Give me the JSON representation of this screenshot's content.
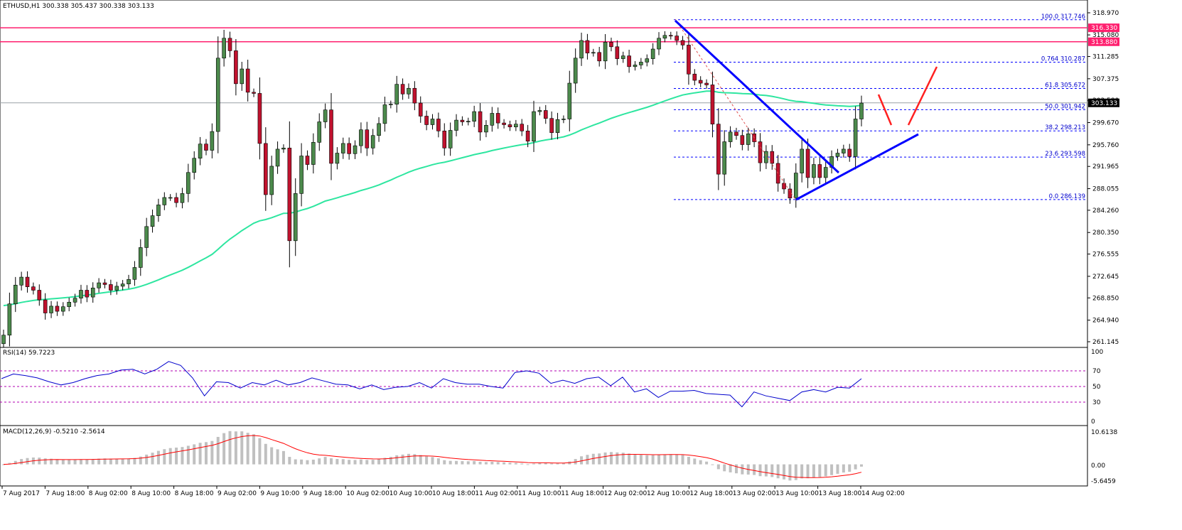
{
  "header": {
    "symbol_info": "ETHUSD,H1  300.338 305.437 300.338 303.133"
  },
  "rsi": {
    "label": "RSI(14) 59.7223",
    "levels": [
      "70",
      "50",
      "30"
    ],
    "level_values": [
      70,
      50,
      30
    ],
    "scale_labels": [
      "100",
      "0"
    ]
  },
  "macd": {
    "label": "MACD(12,26,9) -0.5210 -2.5614",
    "scale_labels": [
      "10.6138",
      "0.00",
      "-5.6459"
    ]
  },
  "colors": {
    "bull_candle": "#4c8a4c",
    "bear_candle": "#c0122e",
    "ma_line": "#2ee6a0",
    "trendline": "#0000ff",
    "resistance": "#ff1f6e",
    "rsi_line": "#0000cc",
    "macd_signal": "#ff0000",
    "macd_hist": "#c0c0c0"
  },
  "chart_data": {
    "type": "candlestick",
    "symbol": "ETHUSD",
    "timeframe": "H1",
    "y_axis_labels": [
      "318.970",
      "315.080",
      "311.285",
      "307.375",
      "303.580",
      "299.670",
      "295.760",
      "291.965",
      "288.055",
      "284.260",
      "280.350",
      "276.555",
      "272.645",
      "268.850",
      "264.940",
      "261.145"
    ],
    "ylim": [
      261.145,
      318.97
    ],
    "current_price": "303.133",
    "resistance_labels": [
      "316.330",
      "313.880"
    ],
    "resistance_levels": [
      316.33,
      313.88
    ],
    "fib_levels": [
      {
        "label": "100.0  317.746",
        "value": 317.746
      },
      {
        "label": "0.764  310.287",
        "value": 310.287
      },
      {
        "label": "61.8  305.672",
        "value": 305.672
      },
      {
        "label": "50.0  301.942",
        "value": 301.942
      },
      {
        "label": "38.2  298.213",
        "value": 298.213
      },
      {
        "label": "23.6  293.598",
        "value": 293.598
      },
      {
        "label": "0.0  286.139",
        "value": 286.139
      }
    ],
    "x_axis_labels": [
      "7 Aug 2017",
      "7 Aug 18:00",
      "8 Aug 02:00",
      "8 Aug 10:00",
      "8 Aug 18:00",
      "9 Aug 02:00",
      "9 Aug 10:00",
      "9 Aug 18:00",
      "10 Aug 02:00",
      "10 Aug 10:00",
      "10 Aug 18:00",
      "11 Aug 02:00",
      "11 Aug 10:00",
      "11 Aug 18:00",
      "12 Aug 02:00",
      "12 Aug 10:00",
      "12 Aug 18:00",
      "13 Aug 02:00",
      "13 Aug 10:00",
      "13 Aug 18:00",
      "14 Aug 02:00"
    ],
    "closes": [
      262.3,
      267.8,
      271.1,
      272.5,
      270.8,
      270.2,
      268.5,
      266.2,
      267.4,
      266.5,
      267.3,
      268.1,
      268.8,
      270.2,
      269.0,
      270.6,
      271.5,
      271.2,
      270.2,
      270.9,
      271.3,
      272.1,
      274.2,
      277.7,
      281.4,
      283.3,
      285.2,
      286.5,
      286.5,
      285.6,
      287.2,
      290.9,
      293.4,
      295.9,
      294.8,
      298.1,
      311.0,
      314.5,
      312.3,
      306.5,
      309.1,
      305.0,
      304.8,
      296.0,
      287.0,
      292.0,
      295.0,
      295.2,
      278.9,
      287.2,
      293.8,
      292.3,
      296.2,
      299.8,
      301.9,
      292.5,
      294.3,
      296.0,
      294.2,
      295.6,
      298.4,
      295.2,
      297.4,
      299.5,
      302.8,
      302.9,
      306.4,
      304.7,
      305.7,
      303.1,
      300.8,
      299.3,
      300.3,
      298.2,
      295.2,
      298.3,
      300.1,
      299.8,
      299.9,
      301.6,
      298.0,
      299.2,
      301.3,
      299.6,
      299.3,
      298.9,
      299.4,
      298.2,
      296.4,
      301.6,
      301.8,
      300.4,
      297.9,
      300.2,
      300.3,
      306.6,
      311.0,
      314.1,
      311.9,
      312.0,
      310.5,
      313.8,
      313.0,
      310.9,
      311.4,
      309.5,
      309.8,
      310.3,
      310.9,
      312.6,
      314.5,
      315.0,
      314.9,
      314.1,
      313.3,
      308.2,
      307.1,
      306.6,
      306.3,
      299.4,
      290.6,
      296.3,
      298.0,
      297.4,
      295.8,
      297.7,
      296.3,
      292.6,
      294.6,
      292.5,
      289.0,
      288.0,
      286.4,
      290.8,
      295.0,
      290.0,
      292.3,
      290.0,
      291.8,
      293.7,
      294.3,
      295.0,
      293.7,
      300.3,
      303.1
    ],
    "ma_series_label": "",
    "rsi_values": [
      60,
      66,
      64,
      61,
      56,
      52,
      55,
      60,
      64,
      66,
      71,
      72,
      66,
      72,
      82,
      77,
      61,
      38,
      56,
      55,
      48,
      55,
      52,
      58,
      52,
      55,
      61,
      57,
      53,
      52,
      47,
      52,
      46,
      49,
      50,
      55,
      48,
      60,
      55,
      53,
      53,
      50,
      48,
      68,
      70,
      67,
      54,
      58,
      54,
      60,
      62,
      51,
      62,
      43,
      47,
      36,
      44,
      44,
      45,
      41,
      40,
      39,
      24,
      43,
      38,
      35,
      32,
      43,
      46,
      43,
      49,
      48,
      60
    ]
  }
}
